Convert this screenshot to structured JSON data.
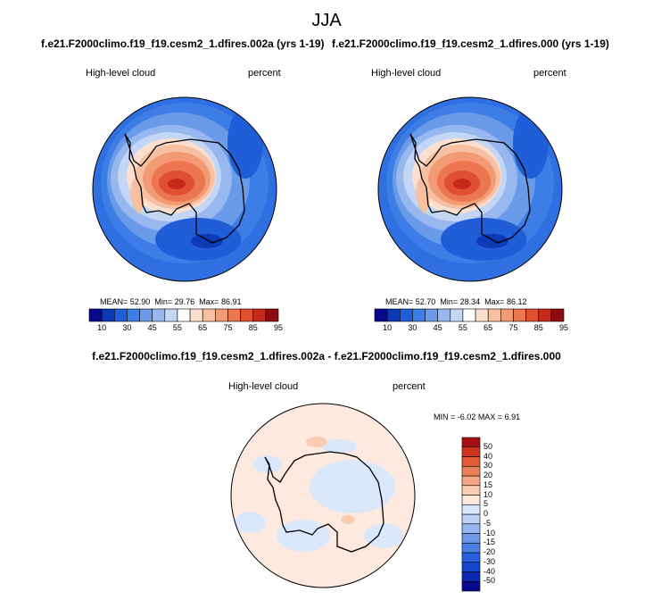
{
  "season": "JJA",
  "panels": [
    {
      "title": "f.e21.F2000climo.f19_f19.cesm2_1.dfires.002a (yrs 1-19)",
      "variable": "High-level cloud",
      "units": "percent",
      "stats": {
        "mean_label": "MEAN=",
        "mean": "52.90",
        "min_label": "Min=",
        "min": "29.76",
        "max_label": "Max=",
        "max": "86.91"
      }
    },
    {
      "title": "f.e21.F2000climo.f19_f19.cesm2_1.dfires.000 (yrs 1-19)",
      "variable": "High-level cloud",
      "units": "percent",
      "stats": {
        "mean_label": "MEAN=",
        "mean": "52.70",
        "min_label": "Min=",
        "min": "28.34",
        "max_label": "Max=",
        "max": "86.12"
      }
    }
  ],
  "difference": {
    "title": "f.e21.F2000climo.f19_f19.cesm2_1.dfires.002a - f.e21.F2000climo.f19_f19.cesm2_1.dfires.000",
    "variable": "High-level cloud",
    "units": "percent",
    "stats": {
      "min_label": "MIN =",
      "min": "-6.02",
      "max_label": "MAX =",
      "max": "6.91"
    }
  },
  "colorbars": {
    "main": {
      "colors": [
        "#08088c",
        "#0b3ab4",
        "#1f5ed6",
        "#3d7de6",
        "#6a9be8",
        "#97b8ef",
        "#c3d6f6",
        "#ffffff",
        "#fbe0d0",
        "#f7c0a3",
        "#f29a73",
        "#ec7650",
        "#df5032",
        "#c52a1c",
        "#8f0c0c"
      ],
      "ticks": [
        "10",
        "30",
        "45",
        "55",
        "65",
        "75",
        "85",
        "95"
      ]
    },
    "diff": {
      "colors_bottom_to_top": [
        "#08088c",
        "#0b2ab0",
        "#1546cf",
        "#2861e0",
        "#4a7ee6",
        "#6d99ea",
        "#94b5ef",
        "#bbd1f5",
        "#dbe8fb",
        "#fde9dd",
        "#f9cdb2",
        "#f3a784",
        "#ec8058",
        "#e25a36",
        "#cf3520",
        "#a71012"
      ],
      "ticks_top_to_bottom": [
        "50",
        "40",
        "30",
        "20",
        "15",
        "10",
        "5",
        "0",
        "-5",
        "-10",
        "-15",
        "-20",
        "-30",
        "-40",
        "-50"
      ]
    }
  },
  "chart_data": [
    {
      "type": "heatmap",
      "projection": "south polar stereographic",
      "title": "f.e21.F2000climo.f19_f19.cesm2_1.dfires.002a (yrs 1-19)",
      "variable": "High-level cloud",
      "units": "percent",
      "mean": 52.9,
      "min": 29.76,
      "max": 86.91,
      "contour_levels": [
        10,
        15,
        20,
        25,
        30,
        35,
        40,
        45,
        50,
        55,
        60,
        65,
        70,
        75,
        80,
        85,
        90,
        95
      ]
    },
    {
      "type": "heatmap",
      "projection": "south polar stereographic",
      "title": "f.e21.F2000climo.f19_f19.cesm2_1.dfires.000 (yrs 1-19)",
      "variable": "High-level cloud",
      "units": "percent",
      "mean": 52.7,
      "min": 28.34,
      "max": 86.12,
      "contour_levels": [
        10,
        15,
        20,
        25,
        30,
        35,
        40,
        45,
        50,
        55,
        60,
        65,
        70,
        75,
        80,
        85,
        90,
        95
      ]
    },
    {
      "type": "heatmap",
      "projection": "south polar stereographic",
      "title": "f.e21.F2000climo.f19_f19.cesm2_1.dfires.002a - f.e21.F2000climo.f19_f19.cesm2_1.dfires.000",
      "variable": "High-level cloud",
      "units": "percent",
      "min": -6.02,
      "max": 6.91,
      "contour_levels": [
        -50,
        -40,
        -30,
        -20,
        -15,
        -10,
        -5,
        0,
        5,
        10,
        15,
        20,
        30,
        40,
        50
      ]
    }
  ]
}
